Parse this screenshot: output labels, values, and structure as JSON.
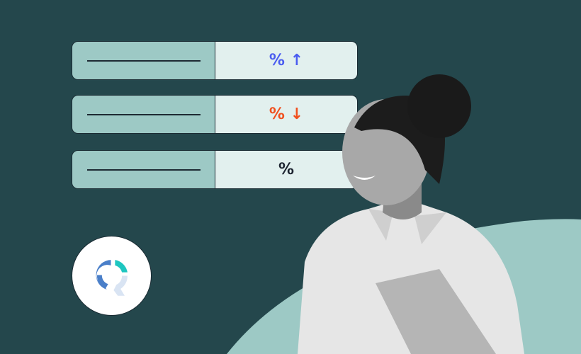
{
  "rows": [
    {
      "value": "%",
      "arrow": "↑",
      "color": "#4a5cf0",
      "arrow_icon": "arrow-up-icon"
    },
    {
      "value": "%",
      "arrow": "↓",
      "color": "#f0501e",
      "arrow_icon": "arrow-down-icon"
    },
    {
      "value": "%",
      "arrow": "",
      "color": "#1d2430"
    }
  ],
  "colors": {
    "background": "#24474c",
    "accent_teal": "#9dc9c5",
    "light": "#e2f0ee"
  },
  "logo": {
    "name": "logo-icon",
    "colors": [
      "#4a7fc9",
      "#1ec6c0",
      "#d9e4f3"
    ]
  }
}
